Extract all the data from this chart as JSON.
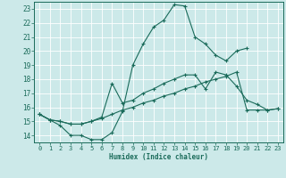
{
  "background_color": "#cce9e9",
  "grid_color": "#b0d4d4",
  "line_color": "#1a6b5a",
  "xlabel": "Humidex (Indice chaleur)",
  "xlim": [
    -0.5,
    23.5
  ],
  "ylim": [
    13.5,
    23.5
  ],
  "yticks": [
    14,
    15,
    16,
    17,
    18,
    19,
    20,
    21,
    22,
    23
  ],
  "xticks": [
    0,
    1,
    2,
    3,
    4,
    5,
    6,
    7,
    8,
    9,
    10,
    11,
    12,
    13,
    14,
    15,
    16,
    17,
    18,
    19,
    20,
    21,
    22,
    23
  ],
  "line1_x": [
    0,
    1,
    2,
    3,
    4,
    5,
    6,
    7,
    8,
    9,
    10,
    11,
    12,
    13,
    14,
    15,
    16,
    17,
    18,
    19,
    20
  ],
  "line1_y": [
    15.5,
    15.1,
    14.7,
    14.0,
    14.0,
    13.7,
    13.7,
    14.2,
    15.7,
    19.0,
    20.5,
    21.7,
    22.2,
    23.3,
    23.2,
    21.0,
    20.5,
    19.7,
    19.3,
    20.0,
    20.2
  ],
  "line2_x": [
    0,
    1,
    2,
    3,
    4,
    5,
    6,
    7,
    8,
    9,
    10,
    11,
    12,
    13,
    14,
    15,
    16,
    17,
    18,
    19,
    20,
    21,
    22,
    23
  ],
  "line2_y": [
    15.5,
    15.1,
    15.0,
    14.8,
    14.8,
    15.0,
    15.3,
    17.7,
    16.3,
    16.5,
    17.0,
    17.3,
    17.7,
    18.0,
    18.3,
    18.3,
    17.3,
    18.5,
    18.3,
    17.5,
    16.5,
    16.2,
    15.8,
    15.9
  ],
  "line3_x": [
    0,
    1,
    2,
    3,
    4,
    5,
    6,
    7,
    8,
    9,
    10,
    11,
    12,
    13,
    14,
    15,
    16,
    17,
    18,
    19,
    20,
    21,
    22,
    23
  ],
  "line3_y": [
    15.5,
    15.1,
    15.0,
    14.8,
    14.8,
    15.0,
    15.2,
    15.5,
    15.8,
    16.0,
    16.3,
    16.5,
    16.8,
    17.0,
    17.3,
    17.5,
    17.8,
    18.0,
    18.2,
    18.5,
    15.8,
    15.8,
    15.8,
    15.9
  ]
}
